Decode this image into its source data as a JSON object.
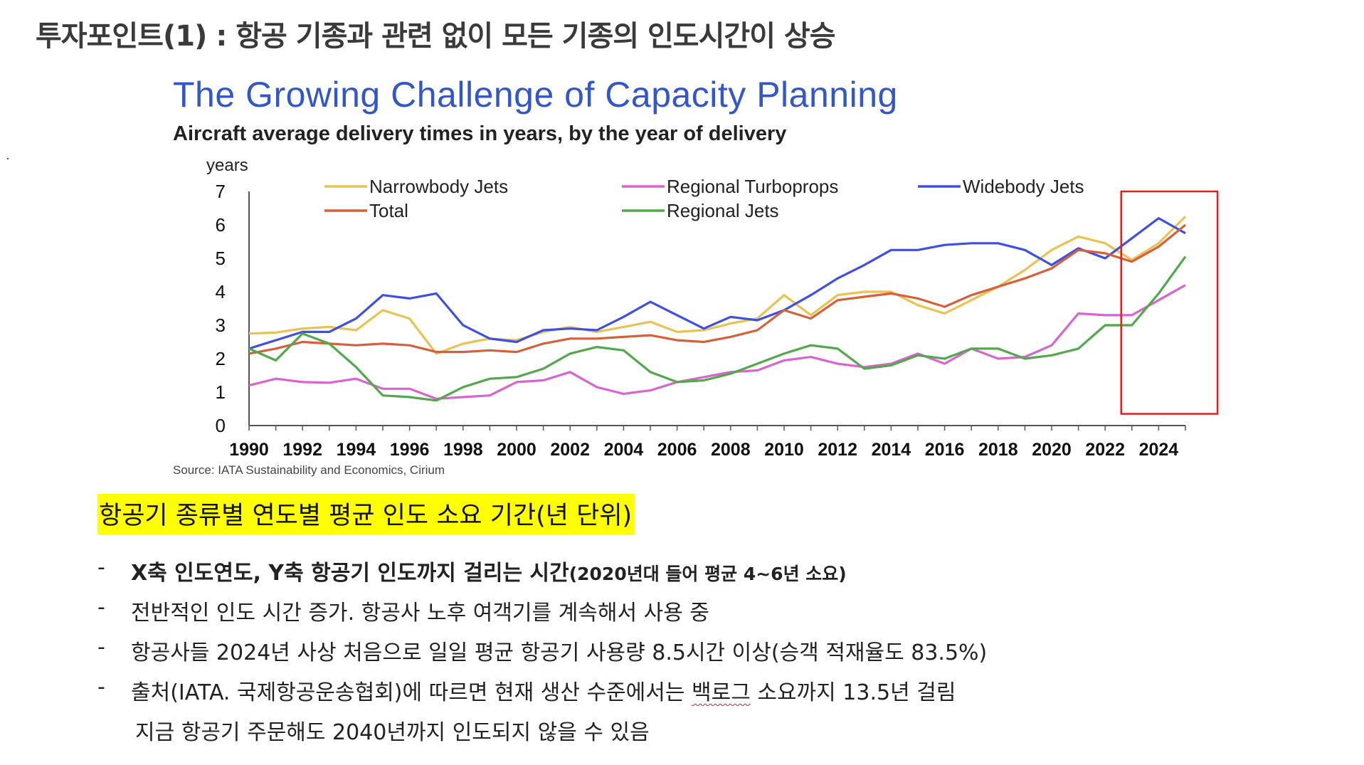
{
  "slide": {
    "title": "투자포인트(1) : 항공 기종과 관련 없이 모든 기종의 인도시간이 상승"
  },
  "chart": {
    "title": "The Growing Challenge of Capacity Planning",
    "subtitle": "Aircraft average delivery times in years, by the year of delivery",
    "source": "Source: IATA Sustainability and Economics, Cirium"
  },
  "caption": "항공기 종류별 연도별 평균 인도 소요 기간(년 단위)",
  "bullets": [
    {
      "dash": "-",
      "bold": "X축 인도연도, Y축 항공기 인도까지 걸리는 시간",
      "bold_small": "(2020년대 들어 평균 4~6년 소요)"
    },
    {
      "dash": "-",
      "text": "전반적인 인도 시간 증가. 항공사 노후 여객기를 계속해서 사용 중"
    },
    {
      "dash": "-",
      "text": "항공사들 2024년 사상 처음으로 일일 평균 항공기 사용량 8.5시간 이상(승객 적재율도 83.5%)"
    },
    {
      "dash": "-",
      "text_before": "출처(IATA. 국제항공운송협회)에 따르면 현재 생산 수준에서는 ",
      "squiggle": "백로그",
      "text_after": " 소요까지 13.5년 걸림"
    },
    {
      "text": "지금 항공기 주문해도 2040년까지 인도되지 않을 수 있음"
    }
  ],
  "chart_data": {
    "type": "line",
    "title": "The Growing Challenge of Capacity Planning",
    "subtitle": "Aircraft average delivery times in years, by the year of delivery",
    "ylabel": "years",
    "xlabel": "",
    "ylim": [
      0,
      7
    ],
    "yticks": [
      0,
      1,
      2,
      3,
      4,
      5,
      6,
      7
    ],
    "xlim": [
      1990,
      2025
    ],
    "xtick_labels": [
      "1990",
      "1992",
      "1994",
      "1996",
      "1998",
      "2000",
      "2002",
      "2004",
      "2006",
      "2008",
      "2010",
      "2012",
      "2014",
      "2016",
      "2018",
      "2020",
      "2022",
      "2024"
    ],
    "x": [
      1990,
      1991,
      1992,
      1993,
      1994,
      1995,
      1996,
      1997,
      1998,
      1999,
      2000,
      2001,
      2002,
      2003,
      2004,
      2005,
      2006,
      2007,
      2008,
      2009,
      2010,
      2011,
      2012,
      2013,
      2014,
      2015,
      2016,
      2017,
      2018,
      2019,
      2020,
      2021,
      2022,
      2023,
      2024,
      2025
    ],
    "grid": false,
    "legend_position": "top",
    "highlight_box": {
      "x_from": 2022.6,
      "x_to": 2026.2,
      "y_from": 0.35,
      "y_to": 7.0,
      "color": "#e02020"
    },
    "series": [
      {
        "name": "Narrowbody Jets",
        "color": "#e8c253",
        "values": [
          2.75,
          2.78,
          2.9,
          2.95,
          2.85,
          3.45,
          3.2,
          2.15,
          2.45,
          2.6,
          2.55,
          2.8,
          2.95,
          2.8,
          2.95,
          3.1,
          2.8,
          2.85,
          3.05,
          3.2,
          3.9,
          3.3,
          3.9,
          4.0,
          4.0,
          3.6,
          3.35,
          3.75,
          4.15,
          4.65,
          5.25,
          5.65,
          5.45,
          4.95,
          5.45,
          6.25
        ]
      },
      {
        "name": "Regional Turboprops",
        "color": "#d865cf",
        "values": [
          1.2,
          1.4,
          1.3,
          1.28,
          1.4,
          1.1,
          1.1,
          0.8,
          0.85,
          0.9,
          1.3,
          1.35,
          1.6,
          1.15,
          0.95,
          1.05,
          1.3,
          1.45,
          1.6,
          1.65,
          1.95,
          2.05,
          1.85,
          1.75,
          1.85,
          2.15,
          1.85,
          2.3,
          2.0,
          2.05,
          2.4,
          3.35,
          3.3,
          3.3,
          3.75,
          4.2
        ]
      },
      {
        "name": "Widebody Jets",
        "color": "#3f4fe0",
        "values": [
          2.3,
          2.55,
          2.8,
          2.8,
          3.2,
          3.9,
          3.8,
          3.95,
          3.0,
          2.6,
          2.5,
          2.85,
          2.9,
          2.85,
          3.25,
          3.7,
          3.3,
          2.9,
          3.25,
          3.15,
          3.45,
          3.9,
          4.4,
          4.8,
          5.25,
          5.25,
          5.4,
          5.45,
          5.45,
          5.25,
          4.8,
          5.3,
          5.0,
          5.6,
          6.2,
          5.75
        ]
      },
      {
        "name": "Total",
        "color": "#d4613b",
        "values": [
          2.15,
          2.3,
          2.5,
          2.45,
          2.4,
          2.45,
          2.4,
          2.2,
          2.2,
          2.25,
          2.2,
          2.45,
          2.6,
          2.6,
          2.65,
          2.7,
          2.55,
          2.5,
          2.65,
          2.85,
          3.45,
          3.2,
          3.75,
          3.85,
          3.95,
          3.8,
          3.55,
          3.9,
          4.15,
          4.4,
          4.7,
          5.25,
          5.15,
          4.9,
          5.35,
          6.0
        ]
      },
      {
        "name": "Regional Jets",
        "color": "#52a84a",
        "values": [
          2.3,
          1.95,
          2.75,
          2.45,
          1.75,
          0.9,
          0.85,
          0.75,
          1.15,
          1.4,
          1.45,
          1.7,
          2.15,
          2.35,
          2.25,
          1.6,
          1.3,
          1.35,
          1.55,
          1.85,
          2.15,
          2.4,
          2.3,
          1.7,
          1.8,
          2.1,
          2.0,
          2.3,
          2.3,
          2.0,
          2.1,
          2.3,
          3.0,
          3.0,
          3.95,
          5.05
        ]
      }
    ]
  }
}
